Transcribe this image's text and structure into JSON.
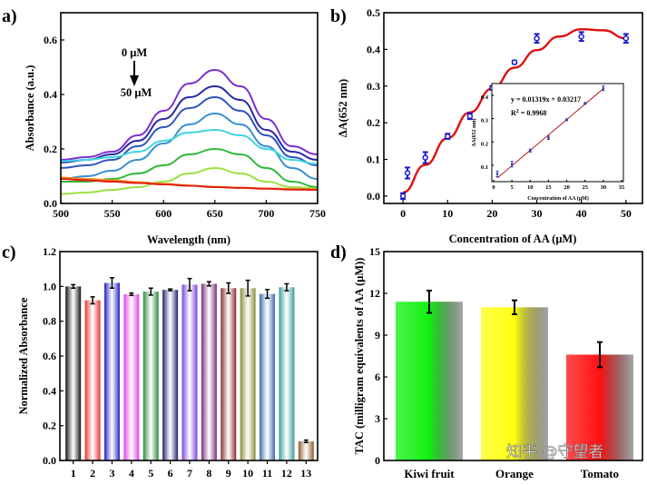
{
  "watermark": "知乎 @守望者",
  "chart_data": [
    {
      "panel": "a)",
      "type": "line",
      "xlabel": "Wavelength (nm)",
      "ylabel": "Absorbance (a.u.)",
      "xlim": [
        500,
        750
      ],
      "ylim": [
        0,
        0.7
      ],
      "xticks": [
        500,
        550,
        600,
        650,
        700,
        750
      ],
      "yticks": [
        "0.0",
        "0.2",
        "0.4",
        "0.6"
      ],
      "annotation_top": "0 μM",
      "annotation_bottom": "50 μM",
      "x": [
        500,
        525,
        550,
        575,
        600,
        625,
        650,
        675,
        700,
        725,
        750
      ],
      "series": [
        {
          "color": "#7b2fd0",
          "values": [
            0.16,
            0.17,
            0.19,
            0.25,
            0.34,
            0.44,
            0.49,
            0.43,
            0.31,
            0.21,
            0.18
          ]
        },
        {
          "color": "#2a2aa8",
          "values": [
            0.15,
            0.16,
            0.18,
            0.23,
            0.31,
            0.39,
            0.43,
            0.38,
            0.27,
            0.19,
            0.16
          ]
        },
        {
          "color": "#2f55c0",
          "values": [
            0.13,
            0.14,
            0.16,
            0.21,
            0.28,
            0.35,
            0.39,
            0.34,
            0.25,
            0.17,
            0.14
          ]
        },
        {
          "color": "#3a8fd0",
          "values": [
            0.09,
            0.1,
            0.12,
            0.16,
            0.22,
            0.29,
            0.33,
            0.29,
            0.21,
            0.13,
            0.09
          ]
        },
        {
          "color": "#3fd6e0",
          "values": [
            0.155,
            0.16,
            0.17,
            0.19,
            0.23,
            0.26,
            0.27,
            0.25,
            0.2,
            0.16,
            0.145
          ]
        },
        {
          "color": "#2fb83a",
          "values": [
            0.08,
            0.08,
            0.09,
            0.11,
            0.14,
            0.18,
            0.2,
            0.18,
            0.13,
            0.08,
            0.06
          ]
        },
        {
          "color": "#9be043",
          "values": [
            0.035,
            0.04,
            0.05,
            0.06,
            0.08,
            0.11,
            0.13,
            0.11,
            0.08,
            0.06,
            0.055
          ]
        },
        {
          "color": "#f08a1a",
          "values": [
            0.095,
            0.09,
            0.085,
            0.078,
            0.072,
            0.066,
            0.061,
            0.058,
            0.055,
            0.053,
            0.052
          ]
        },
        {
          "color": "#e02010",
          "values": [
            0.09,
            0.085,
            0.08,
            0.075,
            0.07,
            0.065,
            0.06,
            0.057,
            0.054,
            0.051,
            0.05
          ]
        }
      ]
    },
    {
      "panel": "b)",
      "type": "scatter",
      "xlabel": "Concentration of AA (μM)",
      "ylabel": "ΔA(652 nm)",
      "xlim": [
        -4.3,
        53.7
      ],
      "ylim": [
        -0.02,
        0.5
      ],
      "xticks": [
        0,
        10,
        20,
        30,
        40,
        50
      ],
      "yticks": [
        "0.0",
        "0.1",
        "0.2",
        "0.3",
        "0.4",
        "0.5"
      ],
      "points": {
        "x": [
          0,
          1,
          5,
          10,
          15,
          20,
          25,
          30,
          40,
          50
        ],
        "y": [
          0.0,
          0.063,
          0.105,
          0.163,
          0.218,
          0.295,
          0.365,
          0.43,
          0.435,
          0.43
        ],
        "err": [
          0.008,
          0.015,
          0.015,
          0.007,
          0.008,
          0.005,
          0.004,
          0.012,
          0.012,
          0.012
        ]
      },
      "fit": {
        "color": "#e01010",
        "x": [
          0,
          5,
          10,
          15,
          20,
          25,
          30,
          35,
          40,
          45,
          50
        ],
        "y": [
          0.01,
          0.085,
          0.158,
          0.228,
          0.293,
          0.35,
          0.398,
          0.435,
          0.455,
          0.452,
          0.43
        ]
      },
      "inset": {
        "xlabel": "Concentration of AA (μM)",
        "ylabel": "ΔA(652 nm)",
        "xlim": [
          0,
          35
        ],
        "ylim": [
          0.03,
          0.45
        ],
        "xticks": [
          0,
          5,
          10,
          15,
          20,
          25,
          30,
          35
        ],
        "yticks": [
          "0.1",
          "0.2",
          "0.3",
          "0.4"
        ],
        "equation": "y = 0.01319x + 0.03217",
        "r2_label": "R",
        "r2_sup": "2",
        "r2_value": " = 0.9968",
        "slope": 0.01319,
        "intercept": 0.03217,
        "points": {
          "x": [
            1,
            5,
            10,
            15,
            20,
            25,
            30
          ],
          "y": [
            0.063,
            0.105,
            0.163,
            0.218,
            0.295,
            0.365,
            0.43
          ],
          "err": [
            0.012,
            0.012,
            0.006,
            0.007,
            0.004,
            0.004,
            0.01
          ]
        }
      }
    },
    {
      "panel": "c)",
      "type": "bar",
      "ylabel": "Normalized Absorbance",
      "ylim": [
        0,
        1.2
      ],
      "yticks": [
        "0.0",
        "0.2",
        "0.4",
        "0.6",
        "0.8",
        "1.0",
        "1.2"
      ],
      "categories": [
        "1",
        "2",
        "3",
        "4",
        "5",
        "6",
        "7",
        "8",
        "9",
        "10",
        "11",
        "12",
        "13"
      ],
      "values": [
        1.0,
        0.92,
        1.02,
        0.955,
        0.97,
        0.98,
        1.01,
        1.015,
        0.99,
        0.99,
        0.957,
        0.995,
        0.11
      ],
      "errors": [
        0.01,
        0.02,
        0.03,
        0.007,
        0.02,
        0.005,
        0.035,
        0.012,
        0.03,
        0.045,
        0.025,
        0.02,
        0.007
      ],
      "colors": [
        "#111111",
        "#e83030",
        "#2020c8",
        "#e040e8",
        "#2a8a3a",
        "#202070",
        "#7a40e0",
        "#7a2a7a",
        "#8a2a2a",
        "#8a8a3a",
        "#3a6aa8",
        "#3a9a9a",
        "#8a5a2a"
      ]
    },
    {
      "panel": "d)",
      "type": "bar",
      "ylabel": "TAC (milligram equivalents of AA (μM))",
      "ylim": [
        0,
        15
      ],
      "yticks": [
        "0",
        "3",
        "6",
        "9",
        "12",
        "15"
      ],
      "categories": [
        "Kiwi fruit",
        "Orange",
        "Tomato"
      ],
      "values": [
        11.4,
        11.0,
        7.6
      ],
      "errors": [
        0.8,
        0.5,
        0.9
      ],
      "colors": [
        "#10f010",
        "#ffff10",
        "#ff1010"
      ]
    }
  ]
}
